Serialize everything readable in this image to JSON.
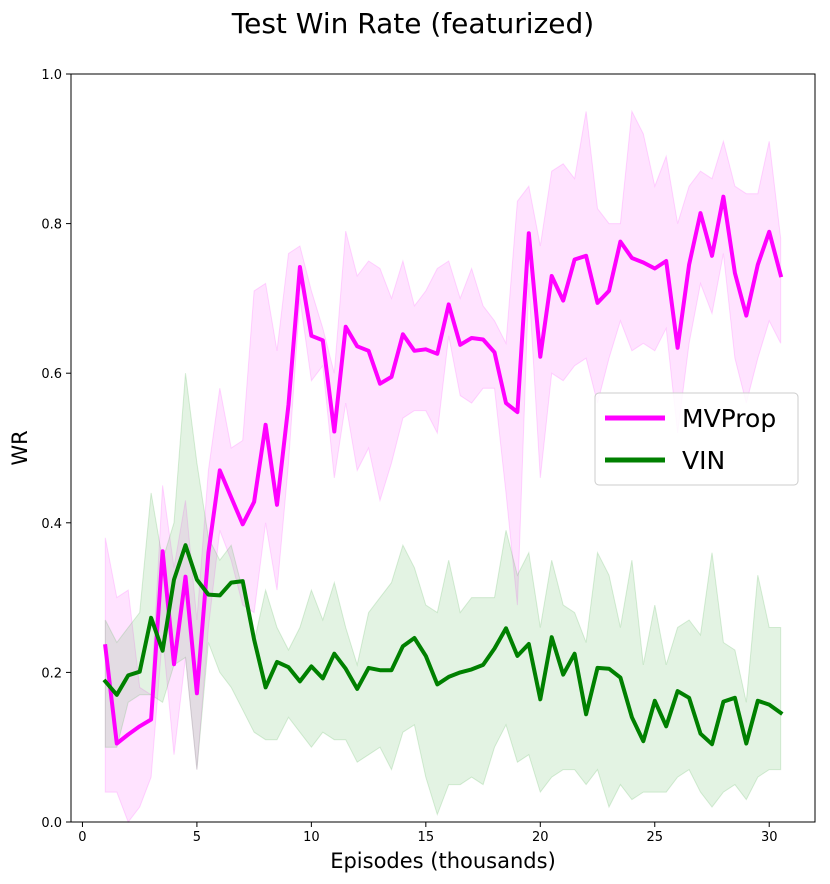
{
  "chart_data": {
    "type": "line",
    "title": "Test Win Rate (featurized)",
    "xlabel": "Episodes (thousands)",
    "ylabel": "WR",
    "xlim": [
      -0.5,
      32
    ],
    "ylim": [
      0.0,
      1.0
    ],
    "x_ticks": [
      0,
      5,
      10,
      15,
      20,
      25,
      30
    ],
    "y_ticks": [
      0.0,
      0.2,
      0.4,
      0.6,
      0.8,
      1.0
    ],
    "x_tick_labels": [
      "0",
      "5",
      "10",
      "15",
      "20",
      "25",
      "30"
    ],
    "y_tick_labels": [
      "0.0",
      "0.2",
      "0.4",
      "0.6",
      "0.8",
      "1.0"
    ],
    "grid": false,
    "legend_position": "center-right",
    "x": [
      1.0,
      1.5,
      2.0,
      2.5,
      3.0,
      3.5,
      4.0,
      4.5,
      5.0,
      5.5,
      6.0,
      6.5,
      7.0,
      7.5,
      8.0,
      8.5,
      9.0,
      9.5,
      10.0,
      10.5,
      11.0,
      11.5,
      12.0,
      12.5,
      13.0,
      13.5,
      14.0,
      14.5,
      15.0,
      15.5,
      16.0,
      16.5,
      17.0,
      17.5,
      18.0,
      18.5,
      19.0,
      19.5,
      20.0,
      20.5,
      21.0,
      21.5,
      22.0,
      22.5,
      23.0,
      23.5,
      24.0,
      24.5,
      25.0,
      25.5,
      26.0,
      26.5,
      27.0,
      27.5,
      28.0,
      28.5,
      29.0,
      29.5,
      30.0,
      30.5
    ],
    "series": [
      {
        "name": "MVProp",
        "color": "#ff00ff",
        "band_color": "#ff66ff",
        "values": [
          0.235,
          0.105,
          0.117,
          0.128,
          0.137,
          0.362,
          0.211,
          0.328,
          0.172,
          0.36,
          0.47,
          0.434,
          0.398,
          0.428,
          0.531,
          0.424,
          0.558,
          0.742,
          0.65,
          0.644,
          0.522,
          0.662,
          0.636,
          0.63,
          0.586,
          0.595,
          0.652,
          0.63,
          0.632,
          0.626,
          0.692,
          0.638,
          0.647,
          0.645,
          0.628,
          0.56,
          0.548,
          0.787,
          0.622,
          0.73,
          0.697,
          0.752,
          0.757,
          0.694,
          0.71,
          0.776,
          0.754,
          0.748,
          0.74,
          0.75,
          0.634,
          0.745,
          0.814,
          0.757,
          0.836,
          0.734,
          0.677,
          0.745,
          0.789,
          0.731
        ],
        "upper": [
          0.38,
          0.3,
          0.31,
          0.18,
          0.17,
          0.45,
          0.34,
          0.43,
          0.27,
          0.47,
          0.58,
          0.5,
          0.51,
          0.71,
          0.72,
          0.63,
          0.76,
          0.77,
          0.71,
          0.66,
          0.6,
          0.79,
          0.73,
          0.75,
          0.74,
          0.7,
          0.75,
          0.69,
          0.71,
          0.74,
          0.75,
          0.7,
          0.74,
          0.69,
          0.67,
          0.64,
          0.83,
          0.85,
          0.77,
          0.87,
          0.88,
          0.86,
          0.95,
          0.82,
          0.8,
          0.8,
          0.95,
          0.92,
          0.85,
          0.89,
          0.8,
          0.85,
          0.87,
          0.86,
          0.91,
          0.85,
          0.84,
          0.84,
          0.91,
          0.78
        ],
        "lower": [
          0.04,
          0.04,
          0.0,
          0.02,
          0.06,
          0.25,
          0.09,
          0.22,
          0.07,
          0.26,
          0.39,
          0.35,
          0.29,
          0.28,
          0.4,
          0.31,
          0.48,
          0.7,
          0.59,
          0.61,
          0.46,
          0.56,
          0.47,
          0.5,
          0.43,
          0.48,
          0.54,
          0.55,
          0.55,
          0.52,
          0.65,
          0.57,
          0.56,
          0.58,
          0.58,
          0.44,
          0.29,
          0.72,
          0.46,
          0.6,
          0.59,
          0.61,
          0.62,
          0.56,
          0.62,
          0.67,
          0.63,
          0.64,
          0.63,
          0.66,
          0.52,
          0.64,
          0.72,
          0.68,
          0.76,
          0.62,
          0.56,
          0.62,
          0.67,
          0.64
        ]
      },
      {
        "name": "VIN",
        "color": "#008000",
        "band_color": "#66bb66",
        "values": [
          0.188,
          0.17,
          0.196,
          0.201,
          0.273,
          0.229,
          0.324,
          0.37,
          0.324,
          0.304,
          0.303,
          0.32,
          0.322,
          0.244,
          0.18,
          0.214,
          0.207,
          0.188,
          0.208,
          0.192,
          0.225,
          0.205,
          0.178,
          0.206,
          0.203,
          0.203,
          0.235,
          0.246,
          0.222,
          0.184,
          0.194,
          0.2,
          0.204,
          0.21,
          0.232,
          0.259,
          0.222,
          0.238,
          0.164,
          0.247,
          0.197,
          0.225,
          0.144,
          0.206,
          0.205,
          0.193,
          0.14,
          0.108,
          0.162,
          0.128,
          0.175,
          0.166,
          0.118,
          0.104,
          0.161,
          0.166,
          0.105,
          0.162,
          0.157,
          0.146
        ],
        "upper": [
          0.27,
          0.24,
          0.26,
          0.28,
          0.44,
          0.35,
          0.4,
          0.6,
          0.48,
          0.38,
          0.35,
          0.37,
          0.31,
          0.24,
          0.31,
          0.26,
          0.23,
          0.26,
          0.31,
          0.27,
          0.32,
          0.26,
          0.21,
          0.28,
          0.3,
          0.32,
          0.37,
          0.34,
          0.29,
          0.28,
          0.35,
          0.28,
          0.3,
          0.3,
          0.3,
          0.39,
          0.33,
          0.36,
          0.26,
          0.35,
          0.29,
          0.28,
          0.24,
          0.36,
          0.33,
          0.26,
          0.35,
          0.21,
          0.29,
          0.21,
          0.26,
          0.27,
          0.25,
          0.36,
          0.24,
          0.23,
          0.16,
          0.33,
          0.26,
          0.26
        ],
        "lower": [
          0.1,
          0.1,
          0.16,
          0.17,
          0.17,
          0.16,
          0.21,
          0.22,
          0.07,
          0.24,
          0.2,
          0.18,
          0.15,
          0.12,
          0.11,
          0.11,
          0.14,
          0.12,
          0.1,
          0.12,
          0.11,
          0.11,
          0.08,
          0.09,
          0.1,
          0.07,
          0.12,
          0.13,
          0.06,
          0.01,
          0.05,
          0.05,
          0.06,
          0.05,
          0.1,
          0.13,
          0.08,
          0.09,
          0.04,
          0.06,
          0.07,
          0.07,
          0.05,
          0.07,
          0.02,
          0.05,
          0.03,
          0.04,
          0.04,
          0.04,
          0.06,
          0.07,
          0.04,
          0.02,
          0.04,
          0.05,
          0.03,
          0.06,
          0.07,
          0.07
        ]
      }
    ]
  }
}
